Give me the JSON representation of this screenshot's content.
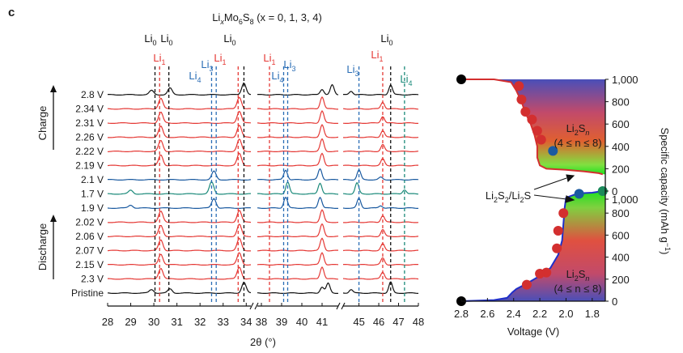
{
  "panel_label": "c",
  "colors": {
    "charge": "#e53935",
    "discharge": "#e53935",
    "mid": "#1a5aa0",
    "teal": "#1b8a7a",
    "black": "#111111",
    "blue_ref": "#2a6db5",
    "blue_curve": "#1f2fc8",
    "red_curve": "#d32f2f",
    "teal_ref": "#2196b8"
  },
  "chart_data": [
    {
      "type": "line",
      "name": "xrd-stack",
      "title": "LixMo6S8 (x = 0, 1, 3, 4)",
      "title_parts": {
        "a": "Li",
        "sub1": "x",
        "b": "Mo",
        "sub2": "6",
        "c": "S",
        "sub3": "8",
        "rest": " (x = 0, 1, 3, 4)"
      },
      "xlabel": "2θ (°)",
      "xlim": [
        28,
        48
      ],
      "segments": [
        [
          28,
          34.2
        ],
        [
          37.8,
          41.8
        ],
        [
          44.2,
          48
        ]
      ],
      "x_ticks": [
        "28",
        "29",
        "30",
        "31",
        "32",
        "33",
        "34",
        "38",
        "39",
        "40",
        "41",
        "45",
        "46",
        "47",
        "48"
      ],
      "charge_label": "Charge",
      "discharge_label": "Discharge",
      "series": [
        {
          "name": "2.8 V",
          "color": "black",
          "peaks": [
            [
              29.9,
              0.35
            ],
            [
              30.7,
              0.55
            ],
            [
              33.9,
              1.0
            ],
            [
              41.0,
              0.45
            ],
            [
              41.5,
              0.8
            ],
            [
              44.6,
              0.3
            ],
            [
              46.6,
              0.8
            ]
          ]
        },
        {
          "name": "2.34 V",
          "color": "red",
          "peaks": [
            [
              30.3,
              0.9
            ],
            [
              33.7,
              1.0
            ],
            [
              41.0,
              1.0
            ],
            [
              46.2,
              0.55
            ]
          ]
        },
        {
          "name": "2.31 V",
          "color": "red",
          "peaks": [
            [
              30.3,
              0.9
            ],
            [
              33.7,
              1.0
            ],
            [
              41.0,
              1.0
            ],
            [
              46.2,
              0.55
            ]
          ]
        },
        {
          "name": "2.26 V",
          "color": "red",
          "peaks": [
            [
              30.3,
              0.9
            ],
            [
              33.7,
              1.0
            ],
            [
              41.0,
              1.0
            ],
            [
              46.2,
              0.55
            ]
          ]
        },
        {
          "name": "2.22 V",
          "color": "red",
          "peaks": [
            [
              30.3,
              0.9
            ],
            [
              33.7,
              1.0
            ],
            [
              41.0,
              1.0
            ],
            [
              46.2,
              0.55
            ]
          ]
        },
        {
          "name": "2.19 V",
          "color": "red",
          "peaks": [
            [
              30.3,
              0.9
            ],
            [
              33.7,
              1.0
            ],
            [
              41.0,
              1.0
            ],
            [
              46.2,
              0.55
            ]
          ]
        },
        {
          "name": "2.1 V",
          "color": "mid",
          "peaks": [
            [
              32.6,
              0.7
            ],
            [
              39.2,
              0.8
            ],
            [
              40.9,
              0.9
            ],
            [
              45.0,
              0.8
            ],
            [
              46.1,
              0.2
            ]
          ]
        },
        {
          "name": "1.7 V",
          "color": "teal",
          "peaks": [
            [
              29.0,
              0.3
            ],
            [
              32.5,
              1.0
            ],
            [
              39.3,
              1.0
            ],
            [
              40.9,
              0.9
            ],
            [
              44.9,
              0.9
            ],
            [
              47.3,
              0.35
            ]
          ]
        },
        {
          "name": "1.9 V",
          "color": "mid",
          "peaks": [
            [
              29.0,
              0.25
            ],
            [
              32.6,
              0.8
            ],
            [
              39.2,
              0.9
            ],
            [
              40.9,
              0.9
            ],
            [
              45.0,
              0.8
            ],
            [
              46.1,
              0.2
            ]
          ]
        },
        {
          "name": "2.02 V",
          "color": "red",
          "peaks": [
            [
              30.3,
              0.9
            ],
            [
              33.7,
              1.0
            ],
            [
              41.0,
              1.0
            ],
            [
              46.2,
              0.55
            ]
          ]
        },
        {
          "name": "2.06 V",
          "color": "red",
          "peaks": [
            [
              30.3,
              0.9
            ],
            [
              33.7,
              1.0
            ],
            [
              41.0,
              1.0
            ],
            [
              46.2,
              0.55
            ]
          ]
        },
        {
          "name": "2.07 V",
          "color": "red",
          "peaks": [
            [
              30.3,
              0.9
            ],
            [
              33.7,
              1.0
            ],
            [
              41.0,
              1.0
            ],
            [
              46.2,
              0.55
            ]
          ]
        },
        {
          "name": "2.15 V",
          "color": "red",
          "peaks": [
            [
              30.3,
              0.9
            ],
            [
              33.7,
              1.0
            ],
            [
              41.0,
              1.0
            ],
            [
              46.2,
              0.55
            ]
          ]
        },
        {
          "name": "2.3 V",
          "color": "red",
          "peaks": [
            [
              30.3,
              0.9
            ],
            [
              33.7,
              1.0
            ],
            [
              41.0,
              1.0
            ],
            [
              46.2,
              0.55
            ]
          ]
        },
        {
          "name": "Pristine",
          "color": "black",
          "peaks": [
            [
              29.9,
              0.3
            ],
            [
              30.7,
              0.35
            ],
            [
              33.9,
              0.9
            ],
            [
              41.0,
              0.5
            ],
            [
              41.3,
              0.8
            ],
            [
              44.6,
              0.3
            ],
            [
              46.6,
              0.9
            ]
          ]
        }
      ],
      "reference_lines": [
        {
          "label": "Li0",
          "base": "Li",
          "sub": "0",
          "x": 30.05,
          "color": "black"
        },
        {
          "label": "Li0",
          "base": "Li",
          "sub": "0",
          "x": 30.65,
          "color": "black"
        },
        {
          "label": "Li0",
          "base": "Li",
          "sub": "0",
          "x": 33.9,
          "color": "black"
        },
        {
          "label": "Li1",
          "base": "Li",
          "sub": "1",
          "x": 30.25,
          "color": "red"
        },
        {
          "label": "Li1",
          "base": "Li",
          "sub": "1",
          "x": 33.65,
          "color": "red"
        },
        {
          "label": "Li4",
          "base": "Li",
          "sub": "4",
          "x": 32.5,
          "color": "blue"
        },
        {
          "label": "Li3",
          "base": "Li",
          "sub": "3",
          "x": 32.7,
          "color": "blue"
        },
        {
          "label": "Li1",
          "base": "Li",
          "sub": "1",
          "x": 38.4,
          "color": "red"
        },
        {
          "label": "Li4",
          "base": "Li",
          "sub": "4",
          "x": 39.1,
          "color": "blue"
        },
        {
          "label": "Li3",
          "base": "Li",
          "sub": "3",
          "x": 39.3,
          "color": "blue"
        },
        {
          "label": "Li3",
          "base": "Li",
          "sub": "3",
          "x": 45.0,
          "color": "blue"
        },
        {
          "label": "Li1",
          "base": "Li",
          "sub": "1",
          "x": 46.2,
          "color": "red"
        },
        {
          "label": "Li0",
          "base": "Li",
          "sub": "0",
          "x": 46.6,
          "color": "black"
        },
        {
          "label": "Li4",
          "base": "Li",
          "sub": "4",
          "x": 47.3,
          "color": "teal"
        }
      ]
    },
    {
      "type": "line",
      "name": "voltage-capacity",
      "xlabel": "Voltage (V)",
      "ylabel": "Specific capacity (mAh g−1)",
      "ylabel_parts": {
        "main": "Specific capacity (mAh g",
        "sup": "−1",
        "end": ")"
      },
      "xlim": [
        2.8,
        1.7
      ],
      "x_ticks": [
        2.8,
        2.6,
        2.4,
        2.2,
        2.0,
        1.8
      ],
      "x_tick_labels": [
        "2.8",
        "2.6",
        "2.4",
        "2.2",
        "2.0",
        "1.8"
      ],
      "upper_ylim": [
        0,
        1000
      ],
      "lower_ylim": [
        0,
        1000
      ],
      "y_ticks": [
        0,
        200,
        400,
        600,
        800,
        1000
      ],
      "upper_tick_labels": [
        "1,000",
        "800",
        "600",
        "400",
        "200",
        "0"
      ],
      "lower_tick_labels": [
        "1,000",
        "800",
        "600",
        "400",
        "200",
        "0"
      ],
      "charge_curve": [
        [
          2.8,
          1000
        ],
        [
          2.55,
          1000
        ],
        [
          2.42,
          975
        ],
        [
          2.38,
          900
        ],
        [
          2.34,
          800
        ],
        [
          2.31,
          700
        ],
        [
          2.27,
          600
        ],
        [
          2.24,
          500
        ],
        [
          2.22,
          400
        ],
        [
          2.22,
          300
        ],
        [
          2.2,
          230
        ],
        [
          2.15,
          200
        ],
        [
          2.0,
          190
        ],
        [
          1.86,
          175
        ],
        [
          1.75,
          160
        ],
        [
          1.72,
          150
        ]
      ],
      "charge_points": [
        [
          2.8,
          1000
        ],
        [
          2.36,
          940
        ],
        [
          2.34,
          820
        ],
        [
          2.31,
          710
        ],
        [
          2.26,
          640
        ],
        [
          2.22,
          540
        ],
        [
          2.19,
          460
        ],
        [
          2.1,
          360
        ],
        [
          1.72,
          150
        ]
      ],
      "discharge_curve": [
        [
          1.72,
          1000
        ],
        [
          1.8,
          985
        ],
        [
          1.9,
          980
        ],
        [
          1.93,
          970
        ],
        [
          2.0,
          940
        ],
        [
          2.01,
          850
        ],
        [
          2.02,
          700
        ],
        [
          2.03,
          550
        ],
        [
          2.06,
          420
        ],
        [
          2.12,
          300
        ],
        [
          2.2,
          230
        ],
        [
          2.3,
          160
        ],
        [
          2.38,
          110
        ],
        [
          2.41,
          80
        ],
        [
          2.45,
          30
        ],
        [
          2.55,
          10
        ],
        [
          2.8,
          0
        ]
      ],
      "discharge_points": [
        [
          1.9,
          975
        ],
        [
          2.02,
          800
        ],
        [
          2.06,
          640
        ],
        [
          2.07,
          480
        ],
        [
          2.15,
          260
        ],
        [
          2.2,
          250
        ],
        [
          2.3,
          150
        ],
        [
          2.8,
          0
        ]
      ],
      "annotations": {
        "upper": {
          "line1_base": "Li",
          "line1_sub": "2",
          "line1_s": "S",
          "line1_n": "n",
          "line2": "(4 ≤ n ≤ 8)"
        },
        "lower": {
          "line1_base": "Li",
          "line1_sub": "2",
          "line1_s": "S",
          "line1_n": "n",
          "line2": "(4 ≤ n ≤ 8)"
        },
        "middle": "Li2S2/Li2S",
        "middle_parts": {
          "a": "Li",
          "s1": "2",
          "b": "S",
          "s2": "2",
          "c": "/Li",
          "s3": "2",
          "d": "S"
        }
      }
    }
  ]
}
